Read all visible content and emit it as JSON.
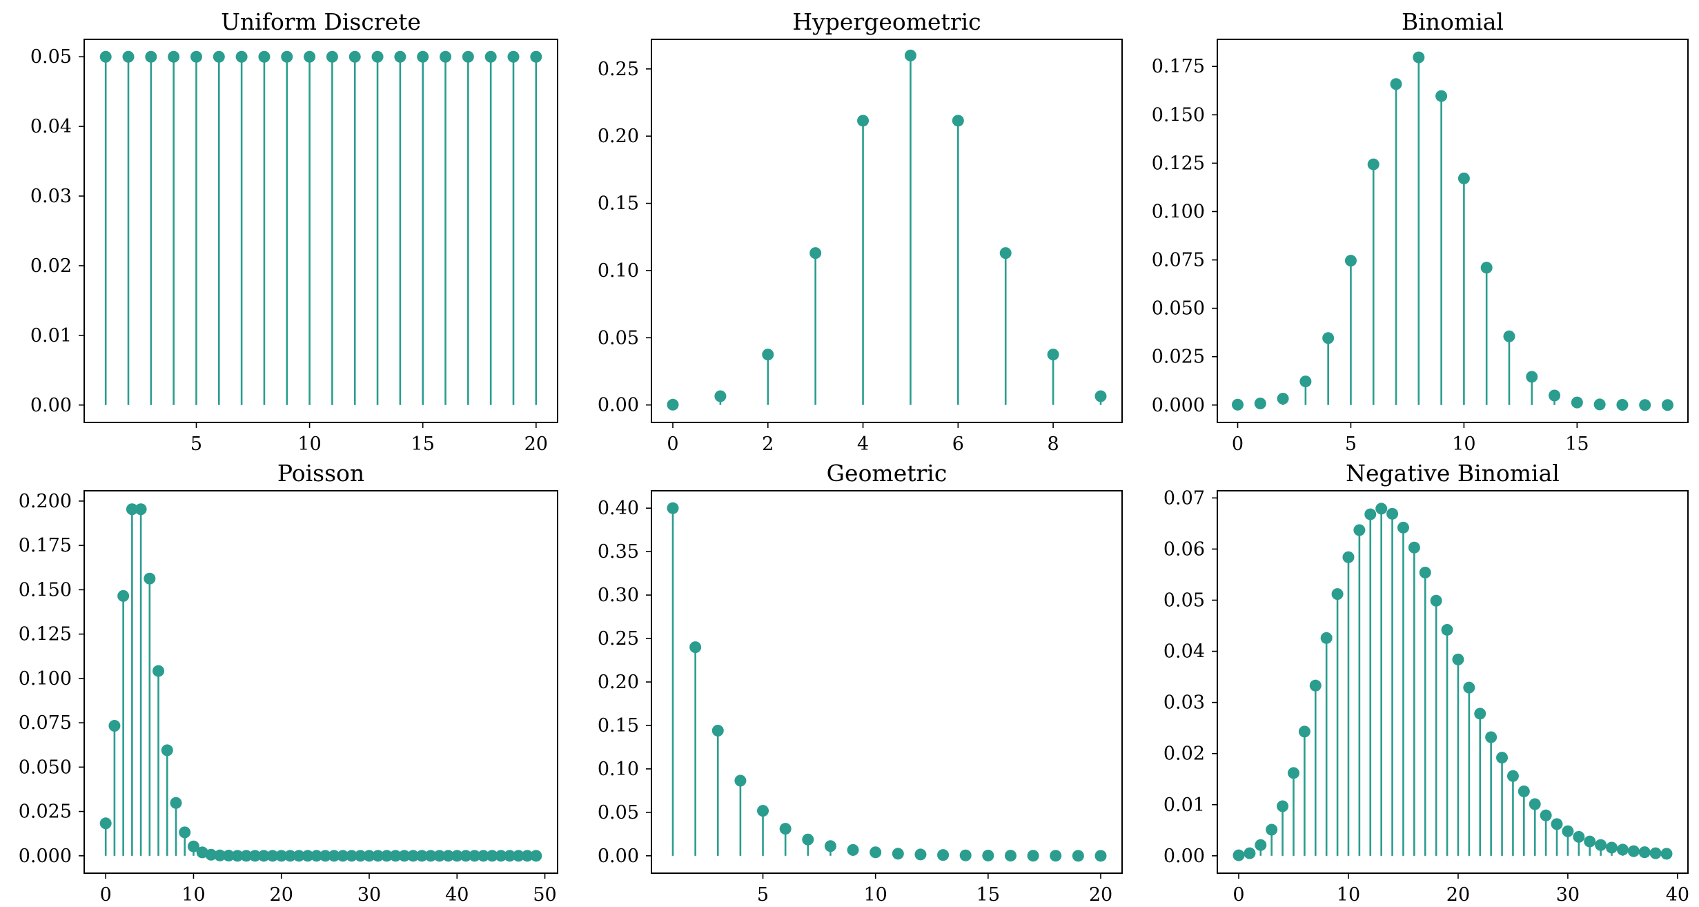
{
  "chart_data": [
    {
      "type": "stem",
      "title": "Uniform Discrete",
      "color": "#2a9d8f",
      "xlim": [
        0.05,
        20.95
      ],
      "ylim": [
        -0.0025,
        0.0525
      ],
      "xticks": [
        5,
        10,
        15,
        20
      ],
      "yticks": [
        0.0,
        0.01,
        0.02,
        0.03,
        0.04,
        0.05
      ],
      "ytick_labels": [
        "0.00",
        "0.01",
        "0.02",
        "0.03",
        "0.04",
        "0.05"
      ],
      "x": [
        1,
        2,
        3,
        4,
        5,
        6,
        7,
        8,
        9,
        10,
        11,
        12,
        13,
        14,
        15,
        16,
        17,
        18,
        19,
        20
      ],
      "y": [
        0.05,
        0.05,
        0.05,
        0.05,
        0.05,
        0.05,
        0.05,
        0.05,
        0.05,
        0.05,
        0.05,
        0.05,
        0.05,
        0.05,
        0.05,
        0.05,
        0.05,
        0.05,
        0.05,
        0.05
      ]
    },
    {
      "type": "stem",
      "title": "Hypergeometric",
      "color": "#2a9d8f",
      "xlim": [
        -0.45,
        9.45
      ],
      "ylim": [
        -0.013,
        0.272
      ],
      "xticks": [
        0,
        2,
        4,
        6,
        8
      ],
      "yticks": [
        0.0,
        0.05,
        0.1,
        0.15,
        0.2,
        0.25
      ],
      "ytick_labels": [
        "0.00",
        "0.05",
        "0.10",
        "0.15",
        "0.20",
        "0.25"
      ],
      "x": [
        0,
        1,
        2,
        3,
        4,
        5,
        6,
        7,
        8,
        9
      ],
      "y": [
        0.0002,
        0.0065,
        0.0375,
        0.113,
        0.2115,
        0.26,
        0.2115,
        0.113,
        0.0375,
        0.0065
      ]
    },
    {
      "type": "stem",
      "title": "Binomial",
      "color": "#2a9d8f",
      "xlim": [
        -0.9,
        19.9
      ],
      "ylim": [
        -0.009,
        0.189
      ],
      "xticks": [
        0,
        5,
        10,
        15
      ],
      "yticks": [
        0.0,
        0.025,
        0.05,
        0.075,
        0.1,
        0.125,
        0.15,
        0.175
      ],
      "ytick_labels": [
        "0.000",
        "0.025",
        "0.050",
        "0.075",
        "0.100",
        "0.125",
        "0.150",
        "0.175"
      ],
      "x": [
        0,
        1,
        2,
        3,
        4,
        5,
        6,
        7,
        8,
        9,
        10,
        11,
        12,
        13,
        14,
        15,
        16,
        17,
        18,
        19
      ],
      "y": [
        0.0002,
        0.0008,
        0.0033,
        0.0122,
        0.0346,
        0.0746,
        0.1244,
        0.1659,
        0.1797,
        0.1597,
        0.1171,
        0.071,
        0.0355,
        0.0146,
        0.0049,
        0.0013,
        0.0003,
        0.0001,
        0.0,
        0.0
      ]
    },
    {
      "type": "stem",
      "title": "Poisson",
      "color": "#2a9d8f",
      "xlim": [
        -2.45,
        51.45
      ],
      "ylim": [
        -0.0098,
        0.2058
      ],
      "xticks": [
        0,
        10,
        20,
        30,
        40,
        50
      ],
      "yticks": [
        0.0,
        0.025,
        0.05,
        0.075,
        0.1,
        0.125,
        0.15,
        0.175,
        0.2
      ],
      "ytick_labels": [
        "0.000",
        "0.025",
        "0.050",
        "0.075",
        "0.100",
        "0.125",
        "0.150",
        "0.175",
        "0.200"
      ],
      "x": [
        0,
        1,
        2,
        3,
        4,
        5,
        6,
        7,
        8,
        9,
        10,
        11,
        12,
        13,
        14,
        15,
        16,
        17,
        18,
        19,
        20,
        21,
        22,
        23,
        24,
        25,
        26,
        27,
        28,
        29,
        30,
        31,
        32,
        33,
        34,
        35,
        36,
        37,
        38,
        39,
        40,
        41,
        42,
        43,
        44,
        45,
        46,
        47,
        48,
        49
      ],
      "y": [
        0.0183,
        0.0733,
        0.1465,
        0.1954,
        0.1954,
        0.1563,
        0.1042,
        0.0595,
        0.0298,
        0.0132,
        0.0053,
        0.0019,
        0.0006,
        0.0002,
        0.0001,
        0.0,
        0.0,
        0.0,
        0.0,
        0.0,
        0.0,
        0.0,
        0.0,
        0.0,
        0.0,
        0.0,
        0.0,
        0.0,
        0.0,
        0.0,
        0.0,
        0.0,
        0.0,
        0.0,
        0.0,
        0.0,
        0.0,
        0.0,
        0.0,
        0.0,
        0.0,
        0.0,
        0.0,
        0.0,
        0.0,
        0.0,
        0.0,
        0.0,
        0.0,
        0.0
      ]
    },
    {
      "type": "stem",
      "title": "Geometric",
      "color": "#2a9d8f",
      "xlim": [
        0.05,
        20.95
      ],
      "ylim": [
        -0.02,
        0.42
      ],
      "xticks": [
        5,
        10,
        15,
        20
      ],
      "yticks": [
        0.0,
        0.05,
        0.1,
        0.15,
        0.2,
        0.25,
        0.3,
        0.35,
        0.4
      ],
      "ytick_labels": [
        "0.00",
        "0.05",
        "0.10",
        "0.15",
        "0.20",
        "0.25",
        "0.30",
        "0.35",
        "0.40"
      ],
      "x": [
        1,
        2,
        3,
        4,
        5,
        6,
        7,
        8,
        9,
        10,
        11,
        12,
        13,
        14,
        15,
        16,
        17,
        18,
        19,
        20
      ],
      "y": [
        0.4,
        0.24,
        0.144,
        0.0864,
        0.0518,
        0.0311,
        0.0187,
        0.0112,
        0.0067,
        0.004,
        0.0024,
        0.0015,
        0.0009,
        0.0005,
        0.0003,
        0.0002,
        0.0001,
        0.0001,
        0.0,
        0.0
      ]
    },
    {
      "type": "stem",
      "title": "Negative Binomial",
      "color": "#2a9d8f",
      "xlim": [
        -1.95,
        40.95
      ],
      "ylim": [
        -0.0034,
        0.0714
      ],
      "xticks": [
        0,
        10,
        20,
        30,
        40
      ],
      "yticks": [
        0.0,
        0.01,
        0.02,
        0.03,
        0.04,
        0.05,
        0.06,
        0.07
      ],
      "ytick_labels": [
        "0.00",
        "0.01",
        "0.02",
        "0.03",
        "0.04",
        "0.05",
        "0.06",
        "0.07"
      ],
      "x": [
        0,
        1,
        2,
        3,
        4,
        5,
        6,
        7,
        8,
        9,
        10,
        11,
        12,
        13,
        14,
        15,
        16,
        17,
        18,
        19,
        20,
        21,
        22,
        23,
        24,
        25,
        26,
        27,
        28,
        29,
        30,
        31,
        32,
        33,
        34,
        35,
        36,
        37,
        38,
        39
      ],
      "y": [
        0.0001,
        0.0005,
        0.0021,
        0.0051,
        0.0097,
        0.0162,
        0.0243,
        0.0333,
        0.0426,
        0.0512,
        0.0584,
        0.0637,
        0.0668,
        0.0679,
        0.0669,
        0.0642,
        0.0603,
        0.0554,
        0.0499,
        0.0442,
        0.0384,
        0.0329,
        0.0278,
        0.0232,
        0.0192,
        0.0156,
        0.0126,
        0.0101,
        0.0079,
        0.0062,
        0.0048,
        0.0037,
        0.0028,
        0.0021,
        0.0016,
        0.0012,
        0.0009,
        0.0007,
        0.0005,
        0.0004
      ]
    }
  ]
}
